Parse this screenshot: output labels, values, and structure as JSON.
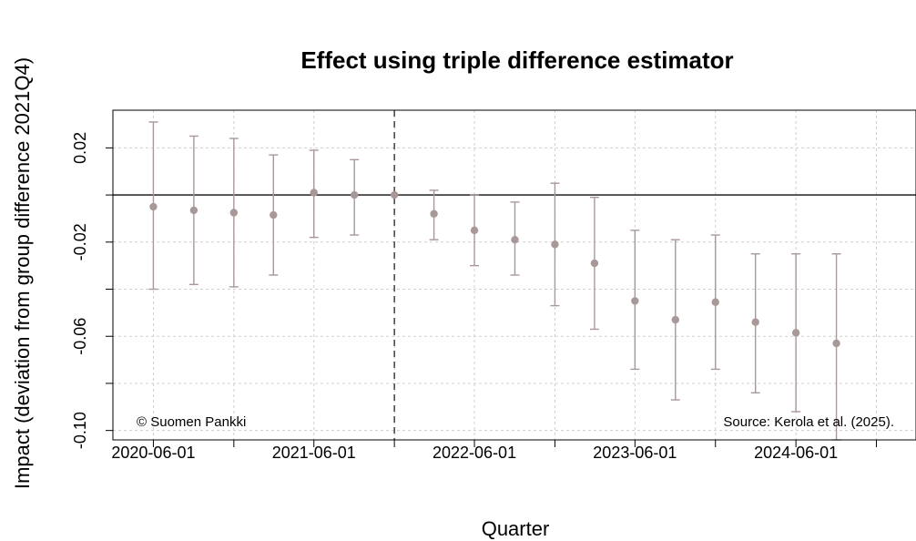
{
  "chart_data": {
    "type": "scatter",
    "title": "Effect using triple difference estimator",
    "xlabel": "Quarter",
    "ylabel": "Impact (deviation from group difference 2021Q4)",
    "x_tick_labels": [
      "2020-06-01",
      "2021-06-01",
      "2022-06-01",
      "2023-06-01",
      "2024-06-01"
    ],
    "y_tick_labels": [
      "0.02",
      "-0.02",
      "-0.06",
      "-0.10"
    ],
    "y_ticks": [
      0.02,
      -0.02,
      -0.06,
      -0.1
    ],
    "ylim": [
      -0.104,
      0.036
    ],
    "xlim": [
      "2020-03-01",
      "2025-03-01"
    ],
    "reference_line_x": "2021-12-01",
    "grid": true,
    "notes": {
      "copyright": "© Suomen Pankki",
      "source": "Source: Kerola et al. (2025)."
    },
    "colors": {
      "points": "#a89898",
      "zero_line": "#333333",
      "grid": "#cfcfcf"
    },
    "series": [
      {
        "x": [
          "2020-06-01",
          "2020-09-01",
          "2020-12-01",
          "2021-03-01",
          "2021-06-01",
          "2021-09-01",
          "2021-12-01",
          "2022-03-01",
          "2022-06-01",
          "2022-09-01",
          "2022-12-01",
          "2023-03-01",
          "2023-06-01",
          "2023-09-01",
          "2023-12-01",
          "2024-03-01",
          "2024-06-01",
          "2024-09-01"
        ],
        "y": [
          -0.005,
          -0.0065,
          -0.0075,
          -0.0085,
          0.001,
          0.0,
          0.0,
          -0.008,
          -0.015,
          -0.019,
          -0.021,
          -0.029,
          -0.045,
          -0.053,
          -0.0455,
          -0.054,
          -0.0585,
          -0.063
        ],
        "lower": [
          -0.04,
          -0.038,
          -0.039,
          -0.034,
          -0.018,
          -0.017,
          0.0,
          -0.019,
          -0.03,
          -0.034,
          -0.047,
          -0.057,
          -0.074,
          -0.087,
          -0.074,
          -0.084,
          -0.092,
          -0.104
        ],
        "upper": [
          0.031,
          0.025,
          0.024,
          0.017,
          0.019,
          0.015,
          0.0,
          0.002,
          0.0,
          -0.003,
          0.005,
          -0.001,
          -0.015,
          -0.019,
          -0.017,
          -0.025,
          -0.025,
          -0.025
        ]
      }
    ]
  }
}
